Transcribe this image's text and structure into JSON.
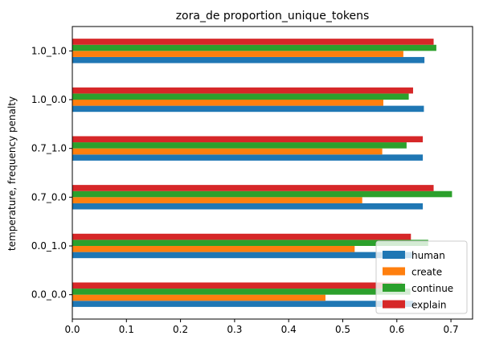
{
  "chart_data": {
    "type": "bar",
    "orientation": "horizontal",
    "title": "zora_de proportion_unique_tokens",
    "xlabel": "",
    "ylabel": "temperature, frequency penalty",
    "categories": [
      "0.0_0.0",
      "0.0_1.0",
      "0.7_0.0",
      "0.7_1.0",
      "1.0_0.0",
      "1.0_1.0"
    ],
    "xlim": [
      0,
      0.74
    ],
    "xticks": [
      0.0,
      0.1,
      0.2,
      0.3,
      0.4,
      0.5,
      0.6,
      0.7
    ],
    "xtick_labels": [
      "0.0",
      "0.1",
      "0.2",
      "0.3",
      "0.4",
      "0.5",
      "0.6",
      "0.7"
    ],
    "grid": false,
    "legend_position": "bottom-right",
    "series": [
      {
        "name": "human",
        "color": "#1f77b4",
        "values": [
          0.63,
          0.63,
          0.648,
          0.648,
          0.65,
          0.651
        ]
      },
      {
        "name": "create",
        "color": "#ff7f0e",
        "values": [
          0.468,
          0.522,
          0.536,
          0.573,
          0.575,
          0.612
        ]
      },
      {
        "name": "continue",
        "color": "#2ca02c",
        "values": [
          0.625,
          0.658,
          0.702,
          0.618,
          0.622,
          0.673
        ]
      },
      {
        "name": "explain",
        "color": "#d62728",
        "values": [
          0.61,
          0.626,
          0.668,
          0.648,
          0.63,
          0.668
        ]
      }
    ]
  }
}
